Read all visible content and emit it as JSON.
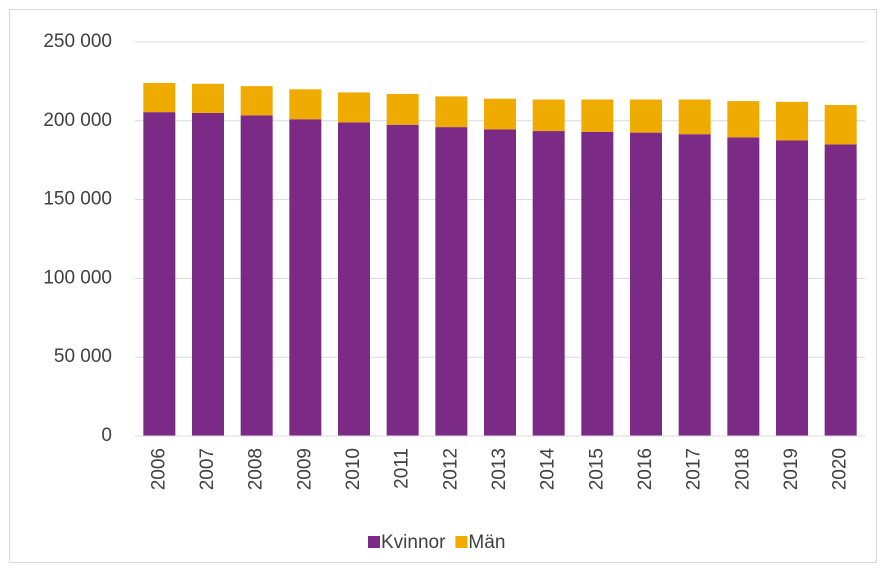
{
  "chart_data": {
    "type": "stacked_bar",
    "categories": [
      "2006",
      "2007",
      "2008",
      "2009",
      "2010",
      "2011",
      "2012",
      "2013",
      "2014",
      "2015",
      "2016",
      "2017",
      "2018",
      "2019",
      "2020"
    ],
    "series": [
      {
        "name": "Kvinnor",
        "color": "#7b2a86",
        "values": [
          205500,
          205000,
          203500,
          201000,
          199000,
          197500,
          196000,
          194500,
          193500,
          193000,
          192500,
          191500,
          189500,
          187500,
          185000
        ]
      },
      {
        "name": "Män",
        "color": "#f0ab00",
        "values": [
          18500,
          18500,
          18500,
          19000,
          19000,
          19500,
          19500,
          19500,
          20000,
          20500,
          21000,
          22000,
          23000,
          24500,
          25000
        ]
      }
    ],
    "ylim": [
      0,
      250000
    ],
    "yticks": [
      0,
      {
        "value": 50000,
        "label": "50 000"
      },
      {
        "value": 100000,
        "label": "100 000"
      },
      {
        "value": 150000,
        "label": "150 000"
      },
      {
        "value": 200000,
        "label": "200 000"
      },
      {
        "value": 250000,
        "label": "250 000"
      }
    ],
    "grid": true,
    "legend": "bottom"
  }
}
